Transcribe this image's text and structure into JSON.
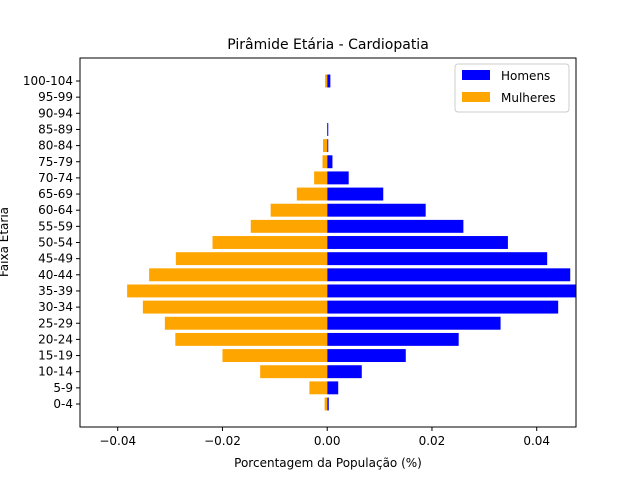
{
  "chart_data": {
    "type": "bar",
    "orientation": "horizontal",
    "title": "Pirâmide Etária - Cardiopatia",
    "xlabel": "Porcentagem da População (%)",
    "ylabel": "Faixa Etária",
    "categories": [
      "0-4",
      "5-9",
      "10-14",
      "15-19",
      "20-24",
      "25-29",
      "30-34",
      "35-39",
      "40-44",
      "45-49",
      "50-54",
      "55-59",
      "60-64",
      "65-69",
      "70-74",
      "75-79",
      "80-84",
      "85-89",
      "90-94",
      "95-99",
      "100-104"
    ],
    "series": [
      {
        "name": "Homens",
        "color": "#0000ff",
        "values": [
          0.0003,
          0.0021,
          0.0066,
          0.015,
          0.0251,
          0.0331,
          0.0441,
          0.0475,
          0.0464,
          0.042,
          0.0345,
          0.026,
          0.0188,
          0.0107,
          0.0041,
          0.001,
          0.0002,
          0.0002,
          0.0,
          0.0,
          0.0006
        ]
      },
      {
        "name": "Mulheres",
        "color": "#ffa500",
        "values": [
          -0.0005,
          -0.0034,
          -0.0128,
          -0.02,
          -0.029,
          -0.031,
          -0.0352,
          -0.0382,
          -0.034,
          -0.0289,
          -0.0219,
          -0.0146,
          -0.0108,
          -0.0058,
          -0.0025,
          -0.0009,
          -0.0008,
          0.0,
          0.0,
          0.0,
          -0.0004
        ]
      }
    ],
    "xlim": [
      -0.0472,
      0.0475
    ],
    "xticks": [
      -0.04,
      -0.02,
      0.0,
      0.02,
      0.04
    ],
    "xtick_labels": [
      "−0.04",
      "−0.02",
      "0.00",
      "0.02",
      "0.04"
    ],
    "grid": false,
    "legend_position": "top-right"
  }
}
